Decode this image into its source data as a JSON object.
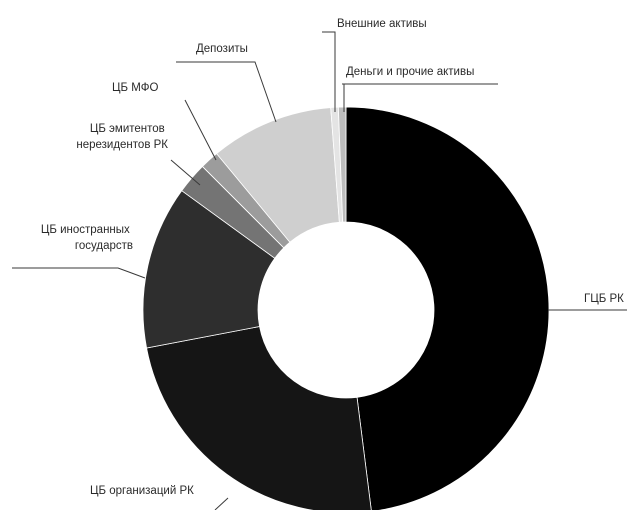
{
  "chart_data": {
    "type": "pie",
    "variant": "donut",
    "title": "",
    "slices": [
      {
        "label": "ГЦБ РК",
        "value": 48.0,
        "color": "#000000"
      },
      {
        "label": "ЦБ организаций РК",
        "value": 24.0,
        "color": "#151515"
      },
      {
        "label": "ЦБ иностранных государств",
        "value": 13.0,
        "color": "#2e2e2e"
      },
      {
        "label": "ЦБ эмитентов нерезидентов РК",
        "value": 2.5,
        "color": "#747474"
      },
      {
        "label": "ЦБ МФО",
        "value": 1.5,
        "color": "#9c9c9c"
      },
      {
        "label": "Депозиты",
        "value": 9.8,
        "color": "#cfcfcf"
      },
      {
        "label": "Внешние активы",
        "value": 0.6,
        "color": "#e4e4e4"
      },
      {
        "label": "Деньги и прочие активы",
        "value": 0.6,
        "color": "#bdbdbd"
      }
    ]
  }
}
